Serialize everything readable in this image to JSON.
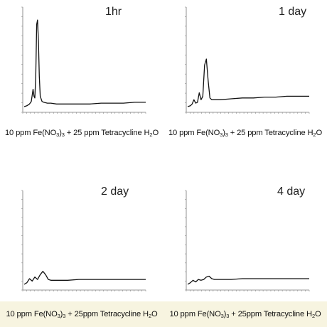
{
  "chart_data": [
    {
      "type": "line",
      "title": "1hr",
      "caption": {
        "prefix": "10 ppm Fe(NO",
        "sub1": "3",
        "mid": ")",
        "sub2": "3",
        "middle": " + 25 ppm Tetracycline H",
        "sub3": "2",
        "suffix": "O"
      },
      "x": [
        0,
        0.3,
        0.6,
        0.8,
        1.0,
        1.1,
        1.2,
        1.3,
        1.4,
        1.5,
        1.6,
        1.7,
        1.8,
        2.0,
        2.2,
        2.6,
        3.0,
        4,
        6,
        8,
        10,
        12,
        14,
        16,
        18,
        20
      ],
      "y": [
        0.0,
        0.01,
        0.03,
        0.06,
        0.2,
        0.12,
        0.1,
        0.35,
        0.95,
        1.0,
        0.75,
        0.35,
        0.12,
        0.06,
        0.05,
        0.04,
        0.04,
        0.03,
        0.03,
        0.03,
        0.03,
        0.04,
        0.04,
        0.04,
        0.05,
        0.05
      ],
      "ylim": [
        0,
        1.1
      ],
      "xlim": [
        0,
        20
      ]
    },
    {
      "type": "line",
      "title": "1 day",
      "caption": {
        "prefix": "10 ppm Fe(NO",
        "sub1": "3",
        "mid": ")",
        "sub2": "3",
        "middle": " + 25 ppm Tetracycline H",
        "sub3": "2",
        "suffix": "O"
      },
      "x": [
        0,
        0.3,
        0.5,
        0.7,
        0.9,
        1.1,
        1.3,
        1.5,
        1.7,
        1.9,
        2.1,
        2.3,
        2.5,
        2.7,
        3.0,
        4,
        6,
        8,
        10,
        12,
        14,
        16,
        18,
        20
      ],
      "y": [
        0.0,
        0.01,
        0.03,
        0.08,
        0.04,
        0.05,
        0.16,
        0.08,
        0.12,
        0.48,
        0.55,
        0.3,
        0.1,
        0.08,
        0.08,
        0.08,
        0.09,
        0.1,
        0.1,
        0.11,
        0.11,
        0.12,
        0.12,
        0.12
      ],
      "ylim": [
        0,
        1.1
      ],
      "xlim": [
        0,
        20
      ]
    },
    {
      "type": "line",
      "title": "2 day",
      "caption": {
        "prefix": "10 ppm Fe(NO",
        "sub1": "3",
        "mid": ")",
        "sub2": "3",
        "middle": " + 25ppm Tetracycline H",
        "sub3": "2",
        "suffix": "O"
      },
      "x": [
        0,
        0.3,
        0.6,
        0.9,
        1.2,
        1.5,
        1.8,
        2.1,
        2.4,
        2.7,
        3.0,
        3.5,
        4,
        6,
        8,
        10,
        12,
        14,
        16,
        18,
        20
      ],
      "y": [
        0.0,
        0.02,
        0.07,
        0.04,
        0.09,
        0.06,
        0.12,
        0.16,
        0.12,
        0.06,
        0.05,
        0.05,
        0.05,
        0.05,
        0.06,
        0.06,
        0.06,
        0.06,
        0.06,
        0.06,
        0.06
      ],
      "ylim": [
        0,
        1.1
      ],
      "xlim": [
        0,
        20
      ]
    },
    {
      "type": "line",
      "title": "4 day",
      "caption": {
        "prefix": "10 ppm Fe(NO",
        "sub1": "3",
        "mid": ")",
        "sub2": "3",
        "middle": " + 25ppm Tetracycline H",
        "sub3": "2",
        "suffix": "O"
      },
      "x": [
        0,
        0.3,
        0.6,
        0.9,
        1.2,
        1.5,
        1.8,
        2.1,
        2.4,
        2.7,
        3.0,
        3.5,
        4,
        6,
        8,
        10,
        12,
        14,
        16,
        18,
        20
      ],
      "y": [
        0.0,
        0.02,
        0.05,
        0.03,
        0.06,
        0.05,
        0.06,
        0.09,
        0.1,
        0.07,
        0.06,
        0.06,
        0.06,
        0.06,
        0.07,
        0.07,
        0.07,
        0.07,
        0.07,
        0.07,
        0.07
      ],
      "ylim": [
        0,
        1.1
      ],
      "xlim": [
        0,
        20
      ]
    }
  ]
}
